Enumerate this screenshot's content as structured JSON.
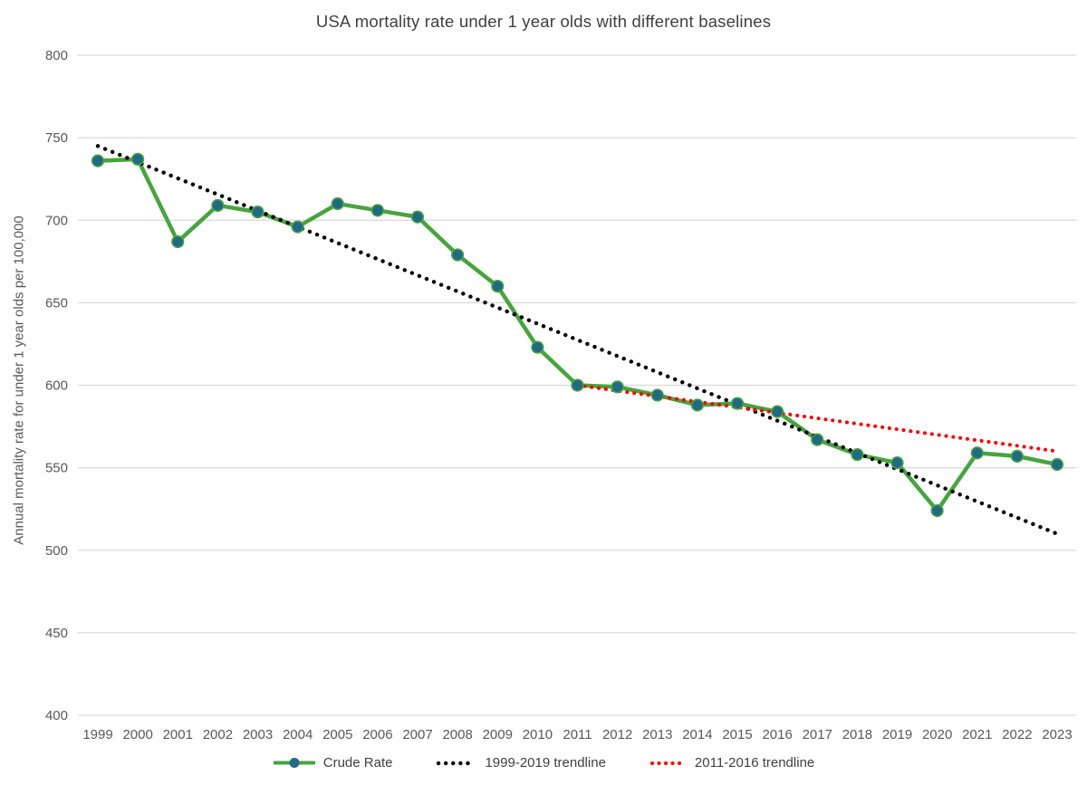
{
  "colors": {
    "background": "#FFFFFF",
    "gridline": "#D9D9D9",
    "tick_text": "#595959",
    "title_text": "#404040",
    "crude_rate_line": "#46A53C",
    "crude_rate_marker": "#206987",
    "trendline_1999_2019": "#000000",
    "trendline_2011_2016": "#FF0000"
  },
  "chart_data": {
    "type": "line",
    "title": "USA mortality rate under 1 year olds with different baselines",
    "xlabel": "",
    "ylabel": "Annual mortality rate for under 1 year olds per 100,000",
    "ylim": [
      400,
      800
    ],
    "y_ticks": [
      800,
      750,
      700,
      650,
      600,
      550,
      500,
      450,
      400
    ],
    "grid": "horizontal",
    "legend_position": "bottom-center",
    "categories": [
      1999,
      2000,
      2001,
      2002,
      2003,
      2004,
      2005,
      2006,
      2007,
      2008,
      2009,
      2010,
      2011,
      2012,
      2013,
      2014,
      2015,
      2016,
      2017,
      2018,
      2019,
      2020,
      2021,
      2022,
      2023
    ],
    "series": [
      {
        "name": "Crude Rate",
        "style": "solid-line-with-markers",
        "line_color": "#46A53C",
        "marker_color": "#206987",
        "values": [
          736,
          737,
          687,
          709,
          705,
          696,
          710,
          706,
          702,
          679,
          660,
          623,
          600,
          599,
          594,
          588,
          589,
          584,
          567,
          558,
          553,
          524,
          559,
          557,
          552
        ]
      },
      {
        "name": "1999-2019 trendline",
        "style": "dotted",
        "line_color": "#000000",
        "fit_range": "1999-2019",
        "x_start": 1999,
        "x_end": 2023,
        "value_start": 745,
        "value_end": 510
      },
      {
        "name": "2011-2016 trendline",
        "style": "dotted",
        "line_color": "#FF0000",
        "fit_range": "2011-2016",
        "x_start": 2011,
        "x_end": 2023,
        "value_start": 600,
        "value_end": 560
      }
    ]
  }
}
